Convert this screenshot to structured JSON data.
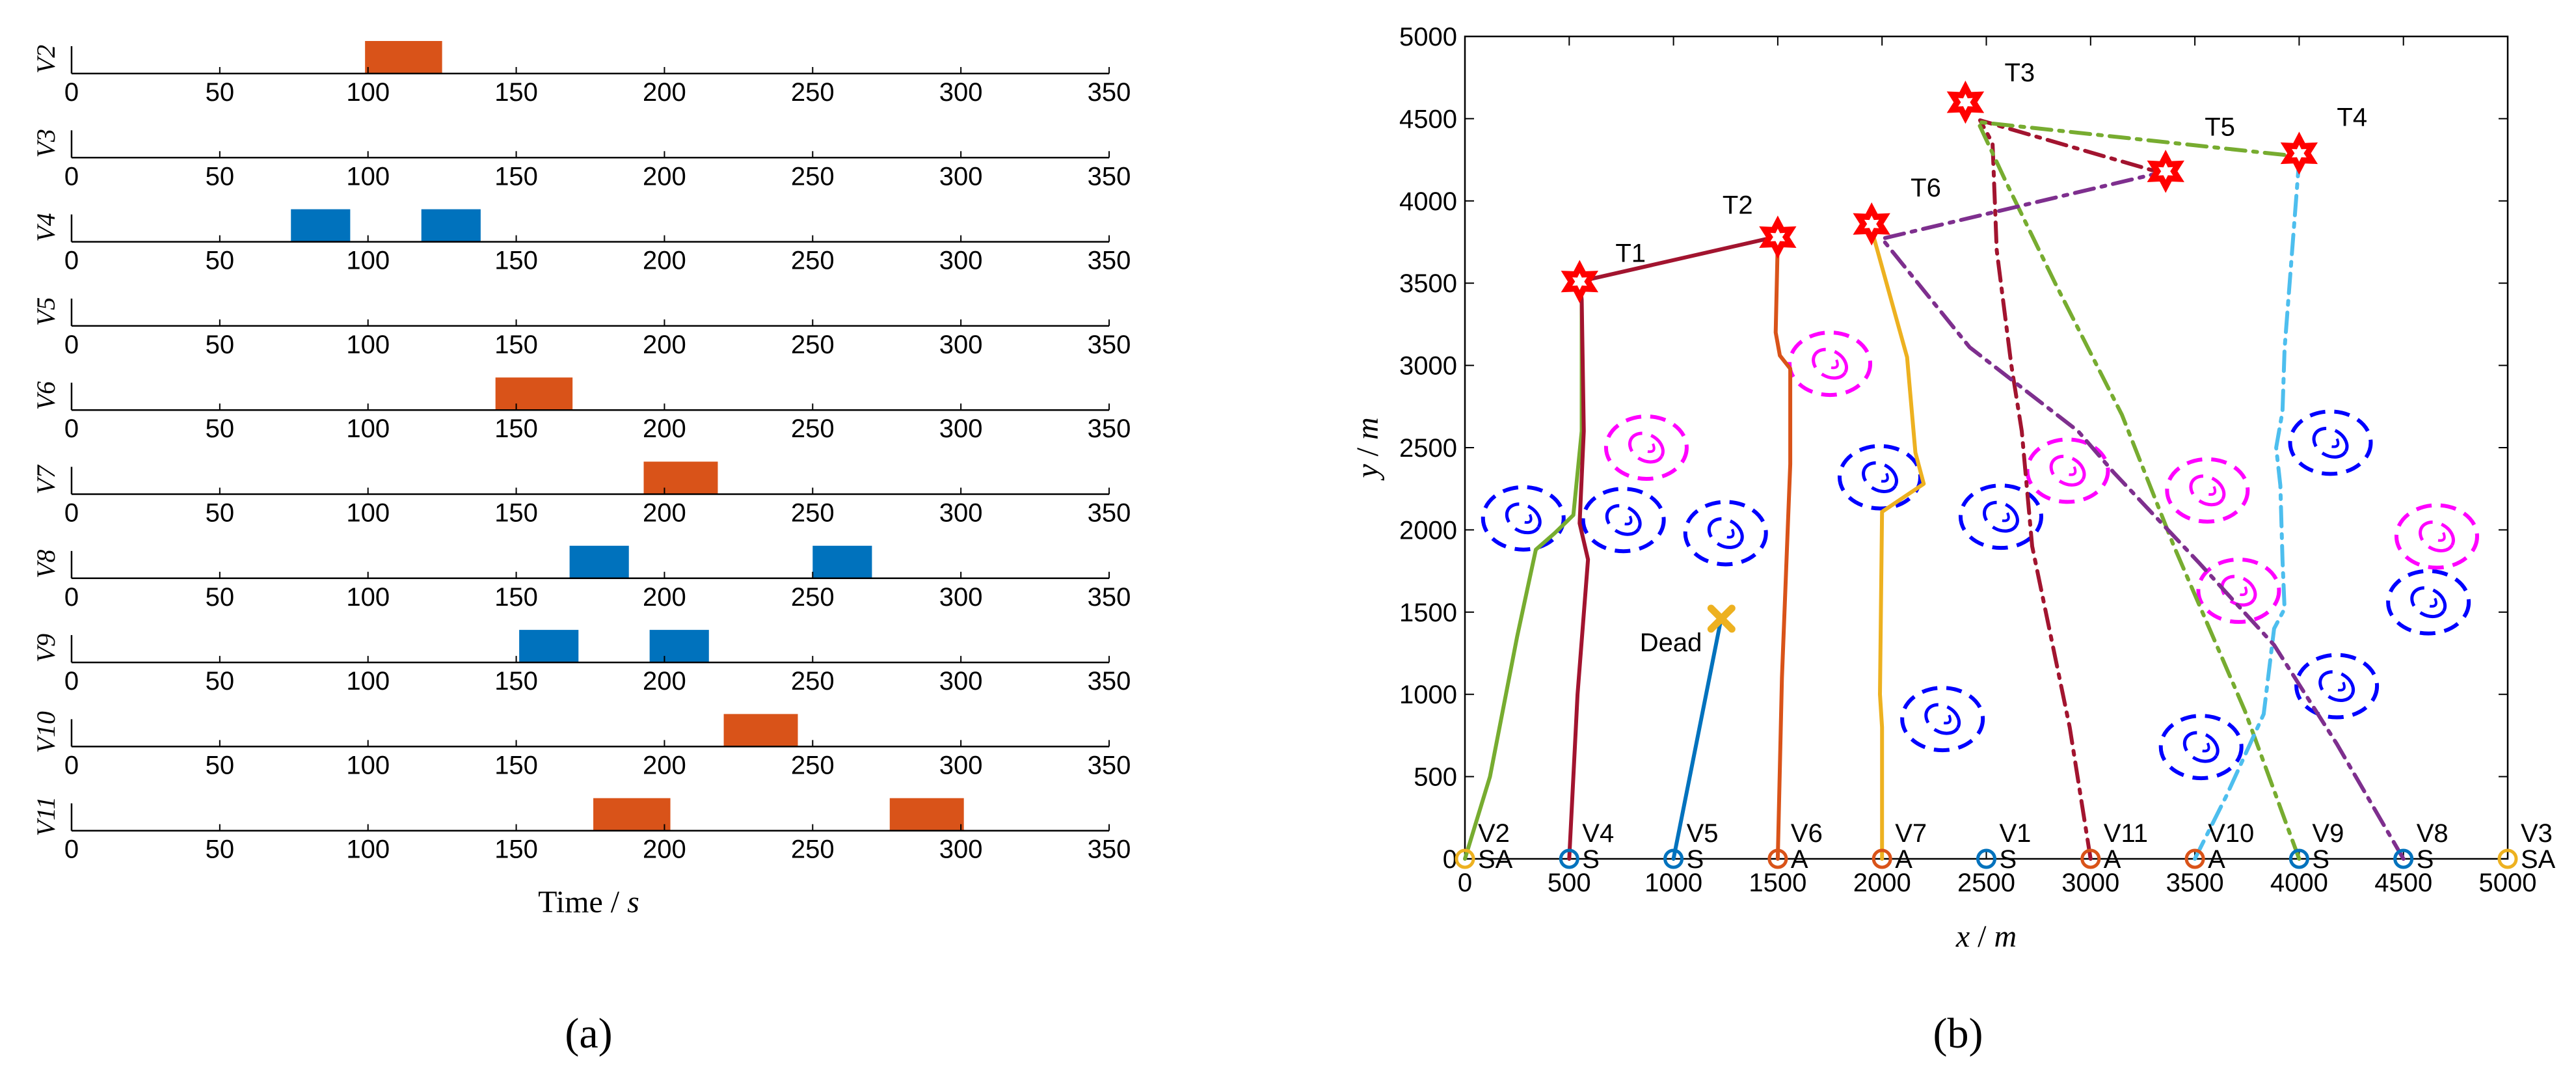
{
  "panel_labels": {
    "a": "(a)",
    "b": "(b)"
  },
  "chart_data": [
    {
      "type": "gantt",
      "xlabel_text": "Time /",
      "xlabel_unit": "s",
      "xlim": [
        0,
        350
      ],
      "xticks": [
        0,
        50,
        100,
        150,
        200,
        250,
        300,
        350
      ],
      "tick_labels": [
        "0",
        "50",
        "100",
        "150",
        "200",
        "250",
        "300",
        "350"
      ],
      "colors": {
        "orange": "#D95319",
        "blue": "#0072BD"
      },
      "rows": [
        {
          "label": "V2",
          "bars": [
            {
              "start": 99,
              "end": 125,
              "color": "orange"
            }
          ]
        },
        {
          "label": "V3",
          "bars": []
        },
        {
          "label": "V4",
          "bars": [
            {
              "start": 74,
              "end": 94,
              "color": "blue"
            },
            {
              "start": 118,
              "end": 138,
              "color": "blue"
            }
          ]
        },
        {
          "label": "V5",
          "bars": []
        },
        {
          "label": "V6",
          "bars": [
            {
              "start": 143,
              "end": 169,
              "color": "orange"
            }
          ]
        },
        {
          "label": "V7",
          "bars": [
            {
              "start": 193,
              "end": 218,
              "color": "orange"
            }
          ]
        },
        {
          "label": "V8",
          "bars": [
            {
              "start": 168,
              "end": 188,
              "color": "blue"
            },
            {
              "start": 250,
              "end": 270,
              "color": "blue"
            }
          ]
        },
        {
          "label": "V9",
          "bars": [
            {
              "start": 151,
              "end": 171,
              "color": "blue"
            },
            {
              "start": 195,
              "end": 215,
              "color": "blue"
            }
          ]
        },
        {
          "label": "V10",
          "bars": [
            {
              "start": 220,
              "end": 245,
              "color": "orange"
            }
          ]
        },
        {
          "label": "V11",
          "bars": [
            {
              "start": 176,
              "end": 202,
              "color": "orange"
            },
            {
              "start": 276,
              "end": 301,
              "color": "orange"
            }
          ]
        }
      ]
    },
    {
      "type": "line",
      "xlabel_var": "x",
      "xlabel_unit": "m",
      "ylabel_var": "y",
      "ylabel_unit": "m",
      "xlim": [
        0,
        5000
      ],
      "ylim": [
        0,
        5000
      ],
      "xticks": [
        0,
        500,
        1000,
        1500,
        2000,
        2500,
        3000,
        3500,
        4000,
        4500,
        5000
      ],
      "yticks": [
        0,
        500,
        1000,
        1500,
        2000,
        2500,
        3000,
        3500,
        4000,
        4500,
        5000
      ],
      "xtick_labels": [
        "0",
        "500",
        "1000",
        "1500",
        "2000",
        "2500",
        "3000",
        "3500",
        "4000",
        "4500",
        "5000"
      ],
      "ytick_labels": [
        "0",
        "500",
        "1000",
        "1500",
        "2000",
        "2500",
        "3000",
        "3500",
        "4000",
        "4500",
        "5000"
      ],
      "targets": [
        {
          "label": "T1",
          "x": 550,
          "y": 3510
        },
        {
          "label": "T2",
          "x": 1500,
          "y": 3780
        },
        {
          "label": "T6",
          "x": 1950,
          "y": 3860
        },
        {
          "label": "T3",
          "x": 2400,
          "y": 4600
        },
        {
          "label": "T5",
          "x": 3360,
          "y": 4180
        },
        {
          "label": "T4",
          "x": 4000,
          "y": 4290
        }
      ],
      "target_color": "#FF0000",
      "threats": [
        {
          "x": 280,
          "y": 2070,
          "color": "blue"
        },
        {
          "x": 760,
          "y": 2060,
          "color": "blue"
        },
        {
          "x": 1250,
          "y": 1980,
          "color": "blue"
        },
        {
          "x": 1990,
          "y": 2320,
          "color": "blue"
        },
        {
          "x": 2570,
          "y": 2080,
          "color": "blue"
        },
        {
          "x": 2290,
          "y": 850,
          "color": "blue"
        },
        {
          "x": 3530,
          "y": 680,
          "color": "blue"
        },
        {
          "x": 4150,
          "y": 2530,
          "color": "blue"
        },
        {
          "x": 4180,
          "y": 1050,
          "color": "blue"
        },
        {
          "x": 4620,
          "y": 1560,
          "color": "blue"
        },
        {
          "x": 1750,
          "y": 3010,
          "color": "magenta"
        },
        {
          "x": 870,
          "y": 2500,
          "color": "magenta"
        },
        {
          "x": 2890,
          "y": 2360,
          "color": "magenta"
        },
        {
          "x": 3560,
          "y": 2240,
          "color": "magenta"
        },
        {
          "x": 3710,
          "y": 1630,
          "color": "magenta"
        },
        {
          "x": 4660,
          "y": 1960,
          "color": "magenta"
        }
      ],
      "threat_colors": {
        "blue": "#0000FF",
        "magenta": "#FF00FF"
      },
      "vehicles": [
        {
          "name": "V2",
          "mode": "SA",
          "x": 0,
          "color": "#EDB120"
        },
        {
          "name": "V4",
          "mode": "S",
          "x": 500,
          "color": "#0072BD"
        },
        {
          "name": "V5",
          "mode": "S",
          "x": 1000,
          "color": "#0072BD"
        },
        {
          "name": "V6",
          "mode": "A",
          "x": 1500,
          "color": "#D95319"
        },
        {
          "name": "V7",
          "mode": "A",
          "x": 2000,
          "color": "#D95319"
        },
        {
          "name": "V1",
          "mode": "S",
          "x": 2500,
          "color": "#0072BD"
        },
        {
          "name": "V11",
          "mode": "A",
          "x": 3000,
          "color": "#D95319"
        },
        {
          "name": "V10",
          "mode": "A",
          "x": 3500,
          "color": "#D95319"
        },
        {
          "name": "V9",
          "mode": "S",
          "x": 4000,
          "color": "#0072BD"
        },
        {
          "name": "V8",
          "mode": "S",
          "x": 4500,
          "color": "#0072BD"
        },
        {
          "name": "V3",
          "mode": "SA",
          "x": 5000,
          "color": "#EDB120"
        }
      ],
      "paths": [
        {
          "color": "#77AC30",
          "dash": "solid",
          "points": [
            [
              0,
              0
            ],
            [
              120,
              500
            ],
            [
              250,
              1350
            ],
            [
              340,
              1880
            ],
            [
              430,
              1980
            ],
            [
              520,
              2090
            ],
            [
              560,
              2600
            ],
            [
              560,
              3380
            ]
          ]
        },
        {
          "color": "#A2142F",
          "dash": "solid",
          "points": [
            [
              500,
              0
            ],
            [
              540,
              1000
            ],
            [
              590,
              1820
            ],
            [
              550,
              2040
            ],
            [
              570,
              2600
            ],
            [
              560,
              3400
            ],
            [
              550,
              3510
            ],
            [
              1450,
              3770
            ]
          ]
        },
        {
          "color": "#0072BD",
          "dash": "solid",
          "points": [
            [
              1000,
              0
            ],
            [
              1230,
              1470
            ]
          ]
        },
        {
          "color": "#D95319",
          "dash": "solid",
          "points": [
            [
              1500,
              0
            ],
            [
              1520,
              1100
            ],
            [
              1560,
              2400
            ],
            [
              1560,
              2980
            ],
            [
              1510,
              3060
            ],
            [
              1490,
              3200
            ],
            [
              1500,
              3760
            ]
          ]
        },
        {
          "color": "#EDB120",
          "dash": "solid",
          "points": [
            [
              2000,
              0
            ],
            [
              2000,
              800
            ],
            [
              1990,
              1000
            ],
            [
              2000,
              2110
            ],
            [
              2200,
              2280
            ],
            [
              2160,
              2470
            ],
            [
              2120,
              3050
            ],
            [
              1960,
              3780
            ]
          ]
        },
        {
          "color": "#A2142F",
          "dash": "dashdot",
          "points": [
            [
              3000,
              0
            ],
            [
              2900,
              800
            ],
            [
              2720,
              1900
            ],
            [
              2670,
              2600
            ],
            [
              2620,
              3000
            ],
            [
              2550,
              3700
            ],
            [
              2530,
              4350
            ],
            [
              2470,
              4490
            ],
            [
              3340,
              4170
            ]
          ]
        },
        {
          "color": "#77AC30",
          "dash": "dashdot",
          "points": [
            [
              4000,
              0
            ],
            [
              3740,
              900
            ],
            [
              3400,
              1900
            ],
            [
              3150,
              2700
            ],
            [
              2830,
              3500
            ],
            [
              2600,
              4100
            ],
            [
              2460,
              4480
            ],
            [
              4000,
              4270
            ]
          ]
        },
        {
          "color": "#4DBEEE",
          "dash": "dashdot",
          "points": [
            [
              3500,
              0
            ],
            [
              3650,
              380
            ],
            [
              3830,
              880
            ],
            [
              3880,
              1400
            ],
            [
              3930,
              1520
            ],
            [
              3920,
              1820
            ],
            [
              3910,
              2270
            ],
            [
              3890,
              2500
            ],
            [
              3920,
              2720
            ],
            [
              3930,
              3100
            ],
            [
              4000,
              4250
            ]
          ]
        },
        {
          "color": "#7E2F8E",
          "dash": "dashdot",
          "points": [
            [
              4500,
              0
            ],
            [
              4180,
              700
            ],
            [
              3880,
              1300
            ],
            [
              3520,
              1800
            ],
            [
              3110,
              2350
            ],
            [
              2940,
              2600
            ],
            [
              2420,
              3110
            ],
            [
              2000,
              3770
            ],
            [
              3330,
              4170
            ]
          ]
        }
      ],
      "dead_marker": {
        "label": "Dead",
        "x": 1230,
        "y": 1460,
        "color": "#EDB120"
      }
    }
  ]
}
